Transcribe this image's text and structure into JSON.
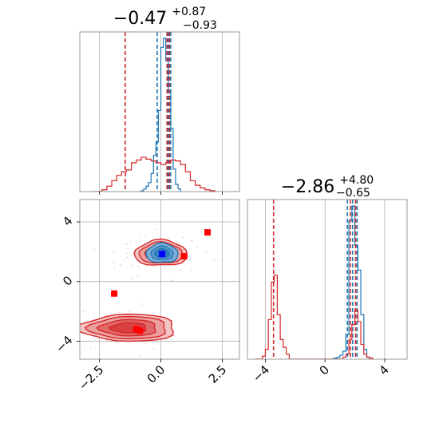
{
  "chart_data": [
    {
      "type": "histogram",
      "panel": "marginal-param1",
      "title": {
        "median": "−0.47",
        "plus": "+0.87",
        "minus": "−0.93"
      },
      "xlim": [
        -3.3,
        3.2
      ],
      "grid": true,
      "series": [
        {
          "color": "#1f77b4",
          "bins_x": [
            -0.9,
            -0.8,
            -0.7,
            -0.6,
            -0.5,
            -0.4,
            -0.3,
            -0.2,
            -0.1,
            0.0,
            0.1,
            0.2,
            0.3,
            0.4,
            0.5,
            0.6,
            0.7,
            0.8
          ],
          "heights": [
            0,
            1,
            3,
            6,
            10,
            20,
            40,
            55,
            90,
            160,
            170,
            145,
            110,
            70,
            25,
            8,
            3,
            0
          ],
          "quantile_lines": [
            -0.15,
            0.3,
            0.4
          ]
        },
        {
          "color": "#d62728",
          "bins_x": [
            -2.7,
            -2.4,
            -2.2,
            -2.0,
            -1.8,
            -1.6,
            -1.4,
            -1.2,
            -1.0,
            -0.8,
            -0.6,
            -0.4,
            -0.2,
            0.0,
            0.2,
            0.4,
            0.6,
            0.8,
            1.0,
            1.2,
            1.4,
            1.6,
            1.8,
            2.0,
            2.2
          ],
          "heights": [
            0,
            2,
            6,
            12,
            18,
            22,
            24,
            32,
            35,
            38,
            36,
            34,
            32,
            30,
            32,
            35,
            34,
            30,
            22,
            12,
            7,
            4,
            2,
            1,
            0
          ],
          "quantile_lines": [
            -1.45,
            0.25,
            0.35
          ]
        }
      ]
    },
    {
      "type": "contour",
      "panel": "joint",
      "xlim": [
        -3.3,
        3.2
      ],
      "ylim": [
        -5.2,
        5.5
      ],
      "xticks": [
        "−2.5",
        "0.0",
        "2.5"
      ],
      "yticks": [
        "−4",
        "0",
        "4"
      ],
      "grid": true,
      "blue_contours": {
        "center": [
          0.05,
          1.9
        ],
        "color": "#1f77b4"
      },
      "red_contours": {
        "centers": [
          [
            0.0,
            1.9
          ],
          [
            -1.3,
            -3.1
          ]
        ],
        "color": "#d62728"
      },
      "red_markers": [
        {
          "x": 1.9,
          "y": 3.3
        },
        {
          "x": 0.95,
          "y": 1.7
        },
        {
          "x": -1.9,
          "y": -0.8
        },
        {
          "x": -1.0,
          "y": -3.2
        },
        {
          "x": -0.85,
          "y": -3.3
        }
      ],
      "blue_marker": {
        "x": 0.05,
        "y": 1.85
      }
    },
    {
      "type": "histogram",
      "panel": "marginal-param2",
      "title": {
        "median": "−2.86",
        "plus": "+4.80",
        "minus": "−0.65"
      },
      "xlim": [
        -5.2,
        5.5
      ],
      "xticks": [
        "−4",
        "0",
        "4"
      ],
      "grid": true,
      "series": [
        {
          "color": "#1f77b4",
          "bins_x": [
            0.4,
            0.6,
            0.8,
            1.0,
            1.2,
            1.4,
            1.6,
            1.8,
            2.0,
            2.2,
            2.4,
            2.6,
            2.8,
            3.0
          ],
          "heights": [
            0,
            1,
            2,
            4,
            8,
            25,
            140,
            155,
            115,
            90,
            45,
            10,
            2,
            0
          ],
          "quantile_lines": [
            1.5,
            1.85,
            2.15
          ]
        },
        {
          "color": "#d62728",
          "bins_x": [
            -4.7,
            -4.2,
            -4.0,
            -3.8,
            -3.6,
            -3.4,
            -3.2,
            -3.0,
            -2.8,
            -2.6,
            -2.4,
            1.0,
            1.2,
            1.4,
            1.6,
            1.8,
            2.0,
            2.2,
            2.4,
            2.6,
            2.8,
            3.0,
            3.2
          ],
          "heights": [
            0,
            3,
            10,
            40,
            78,
            85,
            45,
            20,
            12,
            5,
            0,
            0,
            2,
            5,
            20,
            35,
            50,
            38,
            15,
            5,
            2,
            1,
            0
          ],
          "quantile_lines": [
            -3.45,
            1.7,
            2.05
          ]
        }
      ]
    }
  ]
}
